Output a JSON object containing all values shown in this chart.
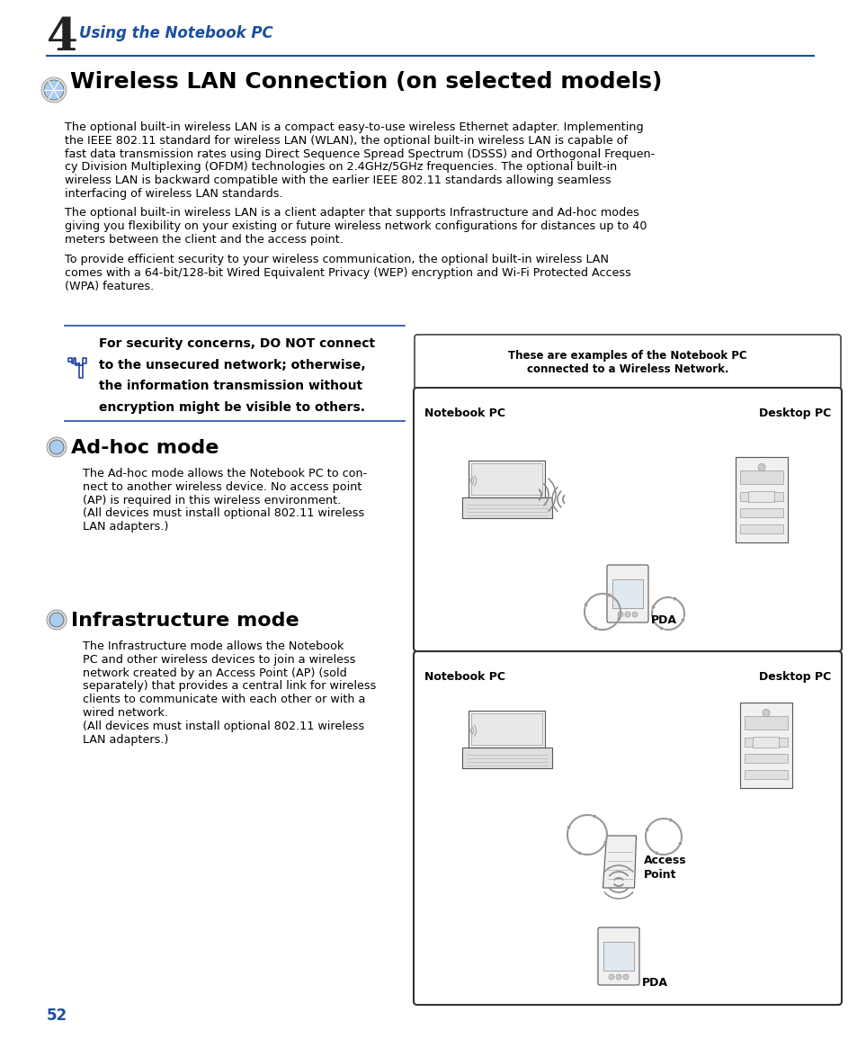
{
  "bg_color": "#ffffff",
  "chapter_num": "4",
  "chapter_title": "Using the Notebook PC",
  "chapter_title_color": "#1a4fa0",
  "section_title": "Wireless LAN Connection (on selected models)",
  "para1_l1": "The optional built-in wireless LAN is a compact easy-to-use wireless Ethernet adapter. Implementing",
  "para1_l2": "the IEEE 802.11 standard for wireless LAN (WLAN), the optional built-in wireless LAN is capable of",
  "para1_l3": "fast data transmission rates using Direct Sequence Spread Spectrum (DSSS) and Orthogonal Frequen-",
  "para1_l4": "cy Division Multiplexing (OFDM) technologies on 2.4GHz/5GHz frequencies. The optional built-in",
  "para1_l5": "wireless LAN is backward compatible with the earlier IEEE 802.11 standards allowing seamless",
  "para1_l6": "interfacing of wireless LAN standards.",
  "para2_l1": "The optional built-in wireless LAN is a client adapter that supports Infrastructure and Ad-hoc modes",
  "para2_l2": "giving you flexibility on your existing or future wireless network configurations for distances up to 40",
  "para2_l3": "meters between the client and the access point.",
  "para3_l1": "To provide efficient security to your wireless communication, the optional built-in wireless LAN",
  "para3_l2": "comes with a 64-bit/128-bit Wired Equivalent Privacy (WEP) encryption and Wi-Fi Protected Access",
  "para3_l3": "(WPA) features.",
  "warn_l1": "For security concerns, DO NOT connect",
  "warn_l2": "to the unsecured network; otherwise,",
  "warn_l3": "the information transmission without",
  "warn_l4": "encryption might be visible to others.",
  "adhoc_title": "Ad-hoc mode",
  "adhoc_l1": "The Ad-hoc mode allows the Notebook PC to con-",
  "adhoc_l2": "nect to another wireless device. No access point",
  "adhoc_l3": "(AP) is required in this wireless environment.",
  "adhoc_l4": "(All devices must install optional 802.11 wireless",
  "adhoc_l5": "LAN adapters.)",
  "infra_title": "Infrastructure mode",
  "infra_l1": "The Infrastructure mode allows the Notebook",
  "infra_l2": "PC and other wireless devices to join a wireless",
  "infra_l3": "network created by an Access Point (AP) (sold",
  "infra_l4": "separately) that provides a central link for wireless",
  "infra_l5": "clients to communicate with each other or with a",
  "infra_l6": "wired network.",
  "infra_l7": "(All devices must install optional 802.11 wireless",
  "infra_l8": "LAN adapters.)",
  "diagram_note1": "These are examples of the Notebook PC",
  "diagram_note2": "connected to a Wireless Network.",
  "page_num": "52",
  "page_num_color": "#1a4fa0",
  "line_color": "#1a4fa0",
  "text_color": "#000000",
  "warn_line_color": "#1a4fa0"
}
